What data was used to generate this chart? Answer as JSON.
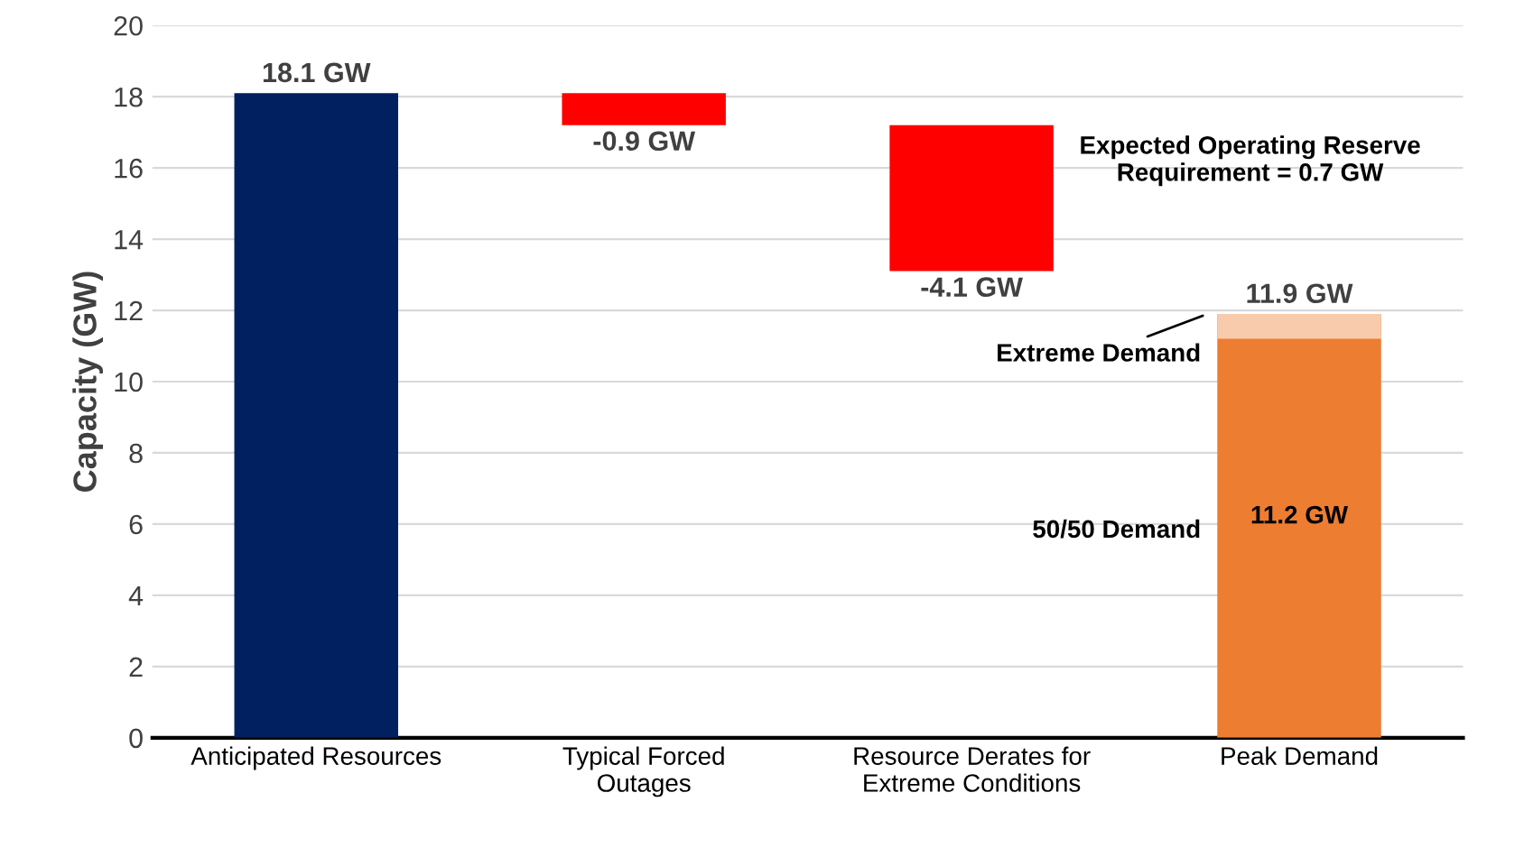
{
  "chart_data": {
    "type": "bar",
    "ylabel": "Capacity (GW)",
    "categories": [
      "Anticipated Resources",
      "Typical Forced\nOutages",
      "Resource Derates for\nExtreme Conditions",
      "Peak Demand"
    ],
    "values": [
      18.1,
      -0.9,
      -4.1,
      11.9
    ],
    "base": [
      0,
      18.1,
      17.2,
      0
    ],
    "colors": [
      "#002060",
      "#ff0000",
      "#ff0000",
      "#ed7d31"
    ],
    "value_labels": [
      "18.1 GW",
      "-0.9 GW",
      "-4.1 GW",
      "11.9 GW"
    ],
    "bands": [
      {
        "axis": "y",
        "from": 11.2,
        "to": 11.9,
        "label": "Extreme Demand",
        "color": "#f8cbad"
      }
    ],
    "ylim": [
      0,
      20
    ],
    "yticks": [
      0,
      2,
      4,
      6,
      8,
      10,
      12,
      14,
      16,
      18,
      20
    ],
    "grid": "y",
    "annotations": [
      "Expected Operating Reserve\nRequirement = 0.7 GW",
      "11.2 GW",
      "50/50 Demand"
    ]
  }
}
